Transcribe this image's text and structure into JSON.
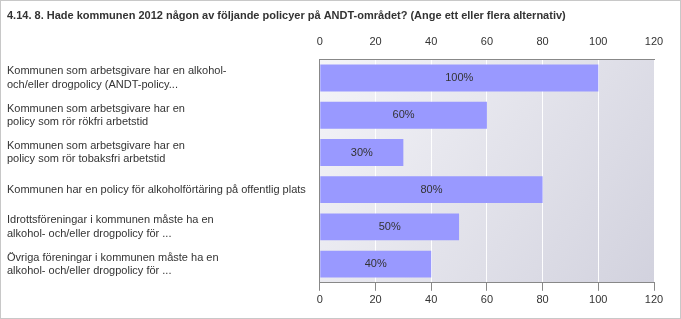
{
  "chart_data": {
    "type": "bar",
    "orientation": "horizontal",
    "title": "4.14. 8. Hade kommunen 2012 någon av följande policyer på ANDT-området? (Ange ett eller flera alternativ)",
    "categories": [
      "Kommunen som arbetsgivare har en alkohol-\noch/eller drogpolicy (ANDT-policy...",
      "Kommunen som arbetsgivare har en\npolicy som rör rökfri arbetstid",
      "Kommunen som arbetsgivare har en\npolicy som rör tobaksfri arbetstid",
      "Kommunen har en policy för alkoholförtäring på offentlig plats",
      "Idrottsföreningar i kommunen måste ha en\nalkohol- och/eller drogpolicy för ...",
      "Övriga föreningar i kommunen måste ha en\nalkohol- och/eller drogpolicy för ..."
    ],
    "values": [
      100,
      60,
      30,
      80,
      50,
      40
    ],
    "value_labels": [
      "100%",
      "60%",
      "30%",
      "80%",
      "50%",
      "40%"
    ],
    "data_labels": true,
    "color": "#9999ff",
    "xlim": [
      0,
      120
    ],
    "xticks": [
      0,
      20,
      40,
      60,
      80,
      100,
      120
    ],
    "grid": true
  }
}
